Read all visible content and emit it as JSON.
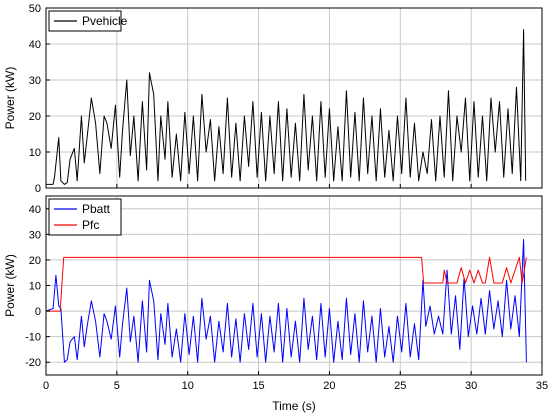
{
  "chart_data": [
    {
      "type": "line",
      "xlabel": "",
      "ylabel": "Power (kW)",
      "xlim": [
        0,
        35
      ],
      "ylim": [
        0,
        50
      ],
      "xticks": [
        0,
        5,
        10,
        15,
        20,
        25,
        30,
        35
      ],
      "yticks": [
        0,
        10,
        20,
        30,
        40,
        50
      ],
      "grid": true,
      "legend_position": "top-left",
      "series": [
        {
          "name": "Pvehicle",
          "color": "#000000",
          "x": [
            0.0,
            0.5,
            0.6,
            0.9,
            1.05,
            1.3,
            1.5,
            1.7,
            2.0,
            2.2,
            2.5,
            2.7,
            2.9,
            3.2,
            3.5,
            3.8,
            4.1,
            4.3,
            4.6,
            4.9,
            5.2,
            5.4,
            5.7,
            5.95,
            6.2,
            6.5,
            6.8,
            7.1,
            7.3,
            7.6,
            7.9,
            8.1,
            8.4,
            8.6,
            8.9,
            9.2,
            9.5,
            9.8,
            10.1,
            10.4,
            10.7,
            11.0,
            11.3,
            11.6,
            11.9,
            12.2,
            12.5,
            12.8,
            13.1,
            13.4,
            13.7,
            14.0,
            14.3,
            14.6,
            14.9,
            15.2,
            15.5,
            15.8,
            16.1,
            16.4,
            16.7,
            17.0,
            17.3,
            17.6,
            17.9,
            18.2,
            18.5,
            18.8,
            19.1,
            19.4,
            19.7,
            20.0,
            20.3,
            20.6,
            20.9,
            21.2,
            21.5,
            21.8,
            22.1,
            22.4,
            22.7,
            23.0,
            23.3,
            23.6,
            23.9,
            24.2,
            24.5,
            24.8,
            25.1,
            25.4,
            25.7,
            26.0,
            26.3,
            26.6,
            26.9,
            27.2,
            27.5,
            27.8,
            28.1,
            28.4,
            28.7,
            29.0,
            29.3,
            29.6,
            29.9,
            30.2,
            30.5,
            30.8,
            31.1,
            31.4,
            31.7,
            32.0,
            32.3,
            32.6,
            32.9,
            33.2,
            33.5,
            33.7,
            33.85
          ],
          "values": [
            1,
            1,
            3,
            14,
            2,
            1,
            1.5,
            8,
            11,
            2,
            20,
            7,
            14,
            25,
            18,
            4,
            20,
            18,
            11,
            23,
            3,
            16,
            30,
            9,
            20,
            2,
            24,
            5,
            32,
            26,
            2,
            20,
            8,
            24,
            3,
            15,
            2,
            21,
            4,
            20,
            2,
            26,
            10,
            19,
            2,
            17,
            4,
            25,
            3,
            18,
            2,
            20,
            6,
            24,
            3,
            21,
            2,
            20,
            4,
            24,
            2,
            22,
            3,
            18,
            2,
            26,
            5,
            20,
            2,
            24,
            3,
            22,
            2,
            17,
            2,
            27,
            3,
            21,
            2,
            25,
            4,
            20,
            2,
            22,
            3,
            16,
            2,
            20,
            4,
            25,
            3,
            18,
            2,
            10,
            4,
            19,
            2,
            20,
            3,
            27,
            2,
            20,
            10,
            25,
            2,
            24,
            3,
            20,
            2,
            25,
            10,
            24,
            3,
            22,
            4,
            28,
            2,
            44,
            2
          ]
        }
      ]
    },
    {
      "type": "line",
      "xlabel": "Time (s)",
      "ylabel": "Power (kW)",
      "xlim": [
        0,
        35
      ],
      "ylim": [
        -25,
        45
      ],
      "xticks": [
        0,
        5,
        10,
        15,
        20,
        25,
        30,
        35
      ],
      "yticks": [
        -20,
        -10,
        0,
        10,
        20,
        30,
        40
      ],
      "grid": true,
      "legend_position": "top-left",
      "series": [
        {
          "name": "Pbatt",
          "color": "#0000ff",
          "x": [
            0.0,
            0.5,
            0.7,
            0.9,
            1.05,
            1.3,
            1.5,
            1.7,
            2.0,
            2.2,
            2.5,
            2.7,
            2.9,
            3.2,
            3.5,
            3.8,
            4.1,
            4.3,
            4.6,
            4.9,
            5.2,
            5.4,
            5.7,
            5.95,
            6.2,
            6.5,
            6.8,
            7.1,
            7.3,
            7.6,
            7.9,
            8.1,
            8.4,
            8.6,
            8.9,
            9.2,
            9.5,
            9.8,
            10.1,
            10.4,
            10.7,
            11.0,
            11.3,
            11.6,
            11.9,
            12.2,
            12.5,
            12.8,
            13.1,
            13.4,
            13.7,
            14.0,
            14.3,
            14.6,
            14.9,
            15.2,
            15.5,
            15.8,
            16.1,
            16.4,
            16.7,
            17.0,
            17.3,
            17.6,
            17.9,
            18.2,
            18.5,
            18.8,
            19.1,
            19.4,
            19.7,
            20.0,
            20.3,
            20.6,
            20.9,
            21.2,
            21.5,
            21.8,
            22.1,
            22.4,
            22.7,
            23.0,
            23.3,
            23.6,
            23.9,
            24.2,
            24.5,
            24.8,
            25.1,
            25.4,
            25.7,
            26.0,
            26.3,
            26.6,
            26.8,
            27.1,
            27.4,
            27.7,
            28.0,
            28.3,
            28.6,
            28.9,
            29.2,
            29.5,
            29.8,
            30.1,
            30.4,
            30.7,
            31.0,
            31.3,
            31.6,
            31.9,
            32.2,
            32.5,
            32.8,
            33.1,
            33.4,
            33.7,
            33.9
          ],
          "values": [
            0,
            1,
            14,
            2,
            1,
            -20,
            -19,
            -12,
            -10,
            -19,
            -2,
            -14,
            -6,
            4,
            -4,
            -18,
            -1,
            -4,
            -11,
            2,
            -18,
            -5,
            9,
            -12,
            -2,
            -20,
            4,
            -16,
            12,
            4,
            -19,
            -1,
            -13,
            3,
            -18,
            -7,
            -20,
            -1,
            -17,
            -2,
            -20,
            5,
            -11,
            -2,
            -20,
            -4,
            -16,
            3,
            -18,
            -3,
            -20,
            -1,
            -15,
            3,
            -18,
            -1,
            -20,
            -2,
            -16,
            3,
            -20,
            1,
            -18,
            -4,
            -20,
            5,
            -15,
            -2,
            -19,
            3,
            -18,
            1,
            -20,
            -4,
            -19,
            5,
            -17,
            -1,
            -20,
            4,
            -16,
            -2,
            -20,
            1,
            -18,
            -6,
            -20,
            -2,
            -16,
            3,
            -18,
            -5,
            -19,
            12,
            -6,
            2,
            -9,
            -2,
            -9,
            16,
            -9,
            6,
            -15,
            13,
            -10,
            2,
            -9,
            5,
            -9,
            8,
            -7,
            4,
            -10,
            12,
            -7,
            6,
            -10,
            28,
            -20
          ]
        },
        {
          "name": "Pfc",
          "color": "#ff0000",
          "x": [
            0.0,
            1.0,
            1.25,
            1.3,
            26.5,
            26.65,
            26.7,
            28.0,
            28.1,
            28.3,
            28.4,
            29.0,
            29.3,
            29.6,
            29.9,
            30.2,
            30.5,
            30.8,
            31.0,
            31.3,
            31.6,
            31.9,
            32.2,
            32.5,
            32.8,
            33.1,
            33.4,
            33.6,
            33.9
          ],
          "values": [
            0,
            0,
            21,
            21,
            21,
            11,
            11,
            11,
            16,
            11,
            11,
            11,
            17,
            11,
            16,
            11,
            16,
            11,
            11,
            21,
            11,
            11,
            11,
            17,
            11,
            16,
            21,
            11,
            21
          ]
        }
      ]
    }
  ]
}
